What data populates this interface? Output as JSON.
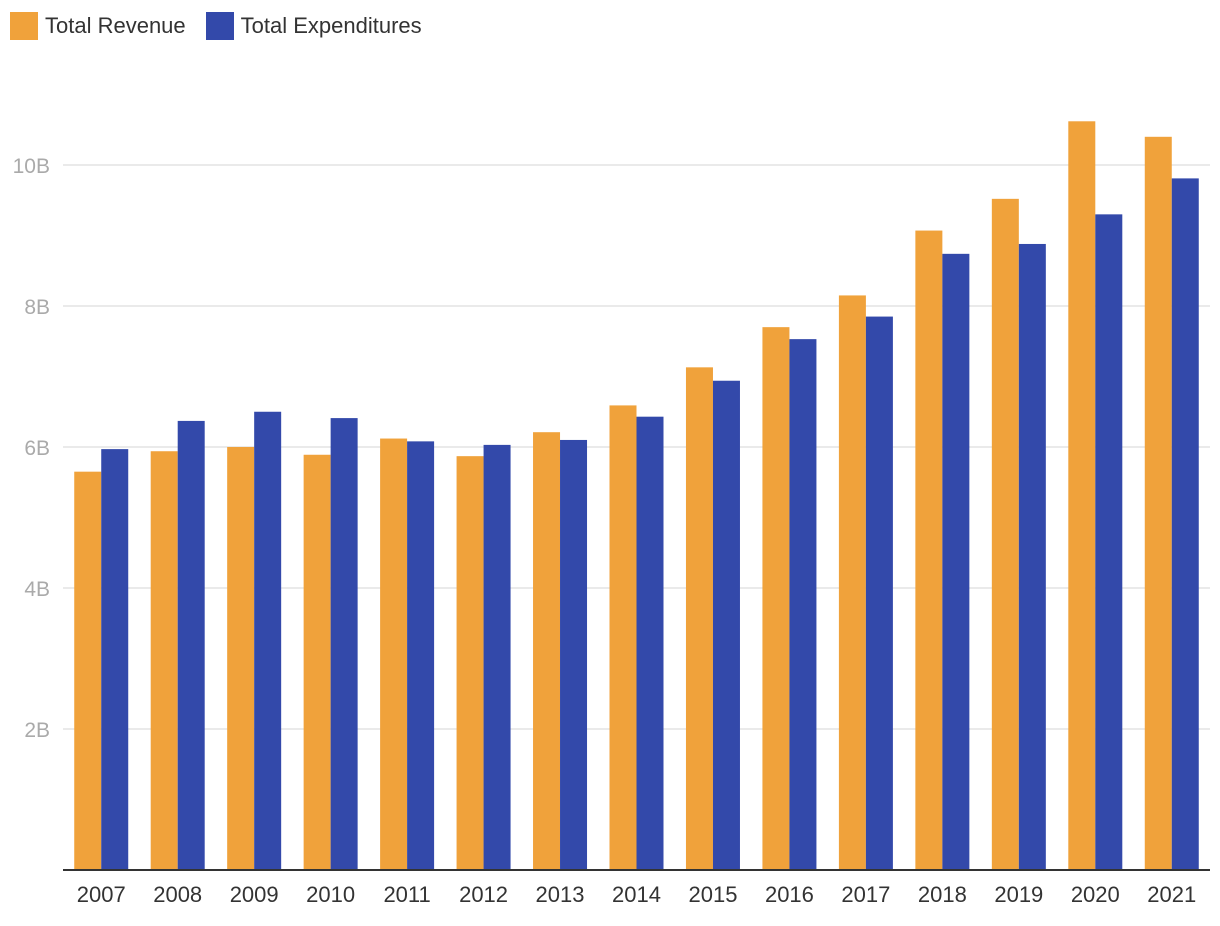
{
  "chart_data": {
    "type": "bar",
    "title": "",
    "xlabel": "",
    "ylabel": "",
    "categories": [
      "2007",
      "2008",
      "2009",
      "2010",
      "2011",
      "2012",
      "2013",
      "2014",
      "2015",
      "2016",
      "2017",
      "2018",
      "2019",
      "2020",
      "2021"
    ],
    "series": [
      {
        "name": "Total Revenue",
        "color": "#F0A23B",
        "values": [
          5.65,
          5.94,
          6.0,
          5.89,
          6.12,
          5.87,
          6.21,
          6.59,
          7.13,
          7.7,
          8.15,
          9.07,
          9.52,
          10.62,
          10.4
        ]
      },
      {
        "name": "Total Expenditures",
        "color": "#3349AA",
        "values": [
          5.97,
          6.37,
          6.5,
          6.41,
          6.08,
          6.03,
          6.1,
          6.43,
          6.94,
          7.53,
          7.85,
          8.74,
          8.88,
          9.3,
          9.81
        ]
      }
    ],
    "ylim": [
      0,
      11
    ],
    "yticks": [
      2,
      4,
      6,
      8,
      10
    ],
    "ytick_labels": [
      "2B",
      "4B",
      "6B",
      "8B",
      "10B"
    ],
    "grid": true,
    "legend_position": "top-left"
  }
}
